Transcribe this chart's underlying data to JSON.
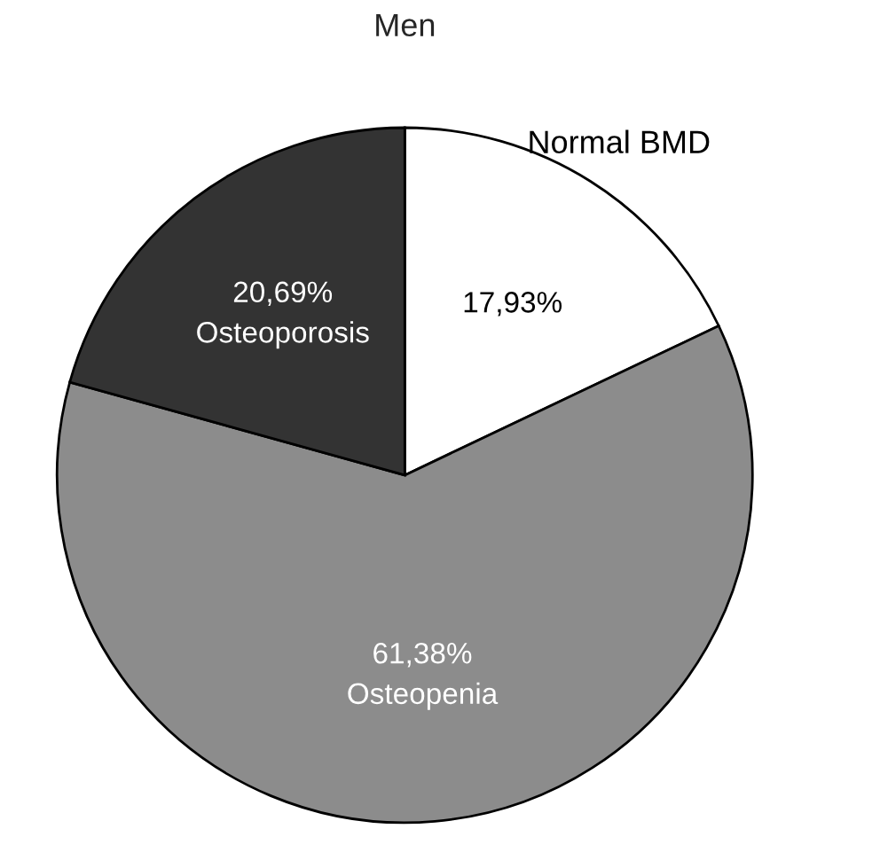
{
  "chart_data": {
    "type": "pie",
    "title": "Men",
    "categories": [
      "Normal BMD",
      "Osteopenia",
      "Osteoporosis"
    ],
    "values": [
      17.93,
      61.38,
      20.69
    ],
    "value_labels": [
      "17,93%",
      "61,38%",
      "20,69%"
    ],
    "colors": [
      "#ffffff",
      "#8c8c8c",
      "#333333"
    ]
  }
}
